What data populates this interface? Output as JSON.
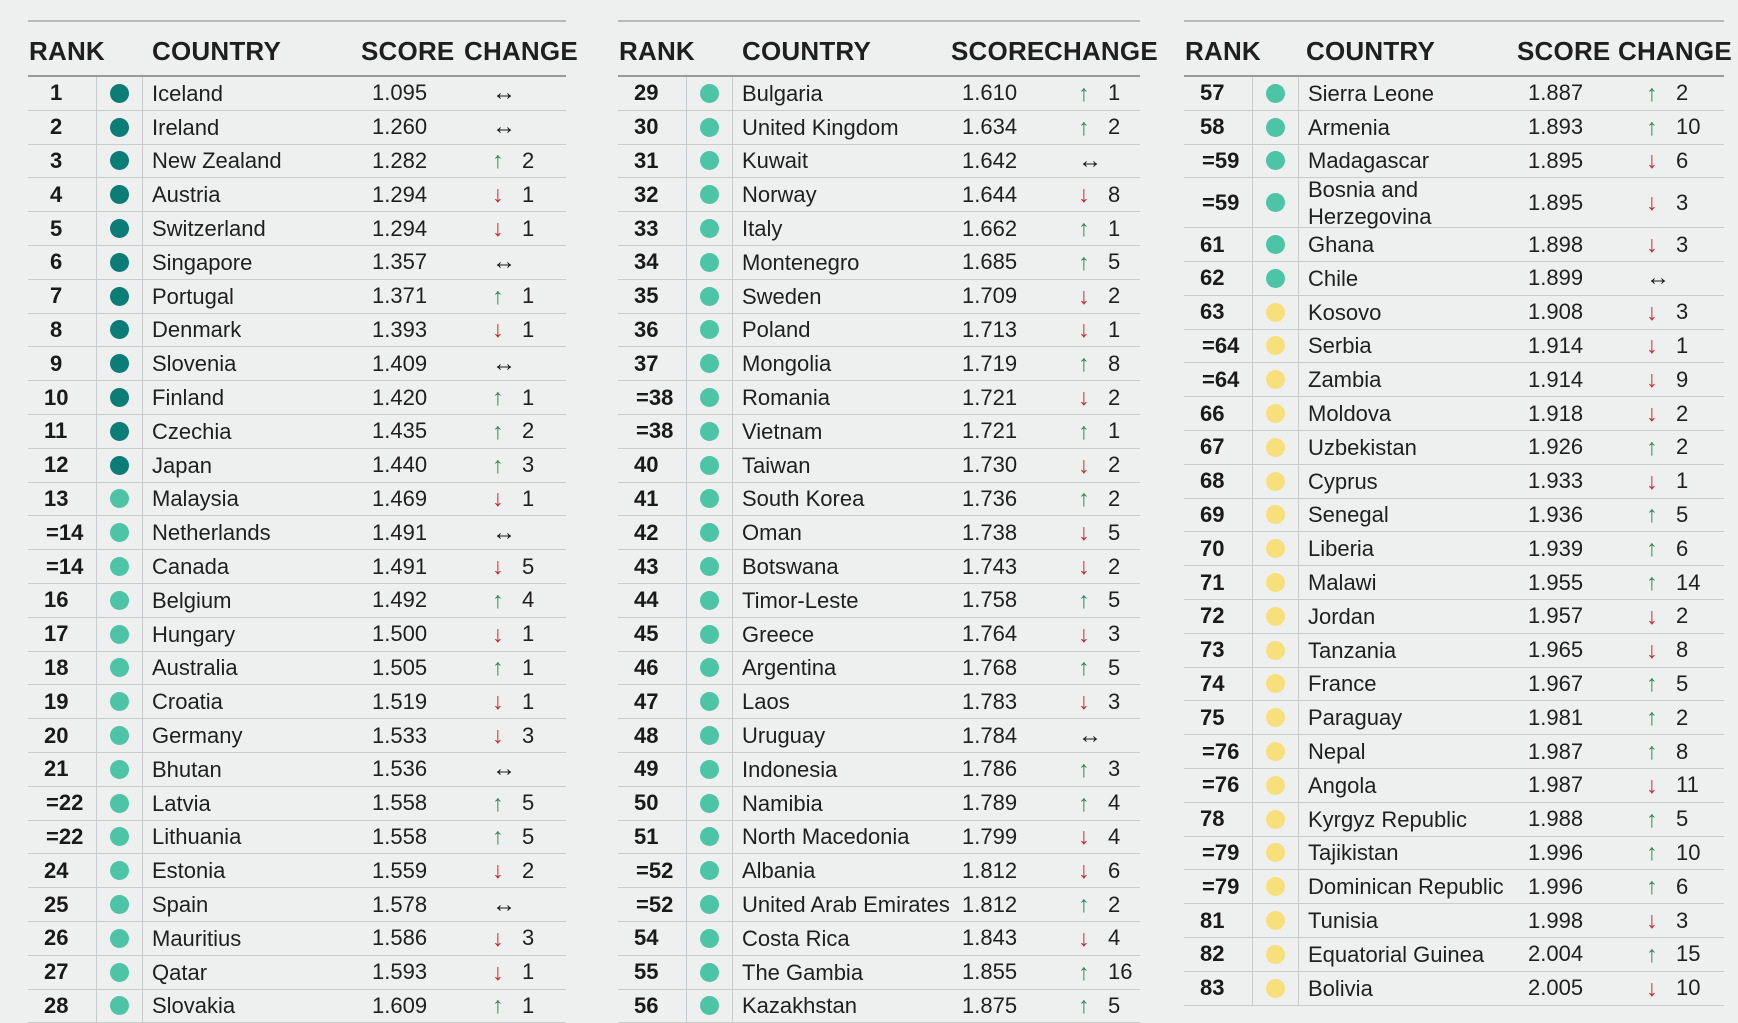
{
  "headers": {
    "rank": "RANK",
    "country": "COUNTRY",
    "score": "SCORE",
    "change": "CHANGE"
  },
  "colors": {
    "high": "#0c7c76",
    "mid": "#4ec4a6",
    "low": "#f7df7c",
    "up": "#2e8b57",
    "down": "#cc2a2a"
  },
  "columns": [
    {
      "rows": [
        {
          "rank": "1",
          "country": "Iceland",
          "score": "1.095",
          "dir": "same",
          "change": "",
          "level": "high"
        },
        {
          "rank": "2",
          "country": "Ireland",
          "score": "1.260",
          "dir": "same",
          "change": "",
          "level": "high"
        },
        {
          "rank": "3",
          "country": "New Zealand",
          "score": "1.282",
          "dir": "up",
          "change": "2",
          "level": "high"
        },
        {
          "rank": "4",
          "country": "Austria",
          "score": "1.294",
          "dir": "down",
          "change": "1",
          "level": "high"
        },
        {
          "rank": "5",
          "country": "Switzerland",
          "score": "1.294",
          "dir": "down",
          "change": "1",
          "level": "high"
        },
        {
          "rank": "6",
          "country": "Singapore",
          "score": "1.357",
          "dir": "same",
          "change": "",
          "level": "high"
        },
        {
          "rank": "7",
          "country": "Portugal",
          "score": "1.371",
          "dir": "up",
          "change": "1",
          "level": "high"
        },
        {
          "rank": "8",
          "country": "Denmark",
          "score": "1.393",
          "dir": "down",
          "change": "1",
          "level": "high"
        },
        {
          "rank": "9",
          "country": "Slovenia",
          "score": "1.409",
          "dir": "same",
          "change": "",
          "level": "high"
        },
        {
          "rank": "10",
          "country": "Finland",
          "score": "1.420",
          "dir": "up",
          "change": "1",
          "level": "high"
        },
        {
          "rank": "11",
          "country": "Czechia",
          "score": "1.435",
          "dir": "up",
          "change": "2",
          "level": "high"
        },
        {
          "rank": "12",
          "country": "Japan",
          "score": "1.440",
          "dir": "up",
          "change": "3",
          "level": "high"
        },
        {
          "rank": "13",
          "country": "Malaysia",
          "score": "1.469",
          "dir": "down",
          "change": "1",
          "level": "mid"
        },
        {
          "rank": "=14",
          "country": "Netherlands",
          "score": "1.491",
          "dir": "same",
          "change": "",
          "level": "mid"
        },
        {
          "rank": "=14",
          "country": "Canada",
          "score": "1.491",
          "dir": "down",
          "change": "5",
          "level": "mid"
        },
        {
          "rank": "16",
          "country": "Belgium",
          "score": "1.492",
          "dir": "up",
          "change": "4",
          "level": "mid"
        },
        {
          "rank": "17",
          "country": "Hungary",
          "score": "1.500",
          "dir": "down",
          "change": "1",
          "level": "mid"
        },
        {
          "rank": "18",
          "country": "Australia",
          "score": "1.505",
          "dir": "up",
          "change": "1",
          "level": "mid"
        },
        {
          "rank": "19",
          "country": "Croatia",
          "score": "1.519",
          "dir": "down",
          "change": "1",
          "level": "mid"
        },
        {
          "rank": "20",
          "country": "Germany",
          "score": "1.533",
          "dir": "down",
          "change": "3",
          "level": "mid"
        },
        {
          "rank": "21",
          "country": "Bhutan",
          "score": "1.536",
          "dir": "same",
          "change": "",
          "level": "mid"
        },
        {
          "rank": "=22",
          "country": "Latvia",
          "score": "1.558",
          "dir": "up",
          "change": "5",
          "level": "mid"
        },
        {
          "rank": "=22",
          "country": "Lithuania",
          "score": "1.558",
          "dir": "up",
          "change": "5",
          "level": "mid"
        },
        {
          "rank": "24",
          "country": "Estonia",
          "score": "1.559",
          "dir": "down",
          "change": "2",
          "level": "mid"
        },
        {
          "rank": "25",
          "country": "Spain",
          "score": "1.578",
          "dir": "same",
          "change": "",
          "level": "mid"
        },
        {
          "rank": "26",
          "country": "Mauritius",
          "score": "1.586",
          "dir": "down",
          "change": "3",
          "level": "mid"
        },
        {
          "rank": "27",
          "country": "Qatar",
          "score": "1.593",
          "dir": "down",
          "change": "1",
          "level": "mid"
        },
        {
          "rank": "28",
          "country": "Slovakia",
          "score": "1.609",
          "dir": "up",
          "change": "1",
          "level": "mid"
        }
      ]
    },
    {
      "rows": [
        {
          "rank": "29",
          "country": "Bulgaria",
          "score": "1.610",
          "dir": "up",
          "change": "1",
          "level": "mid"
        },
        {
          "rank": "30",
          "country": "United Kingdom",
          "score": "1.634",
          "dir": "up",
          "change": "2",
          "level": "mid"
        },
        {
          "rank": "31",
          "country": "Kuwait",
          "score": "1.642",
          "dir": "same",
          "change": "",
          "level": "mid"
        },
        {
          "rank": "32",
          "country": "Norway",
          "score": "1.644",
          "dir": "down",
          "change": "8",
          "level": "mid"
        },
        {
          "rank": "33",
          "country": "Italy",
          "score": "1.662",
          "dir": "up",
          "change": "1",
          "level": "mid"
        },
        {
          "rank": "34",
          "country": "Montenegro",
          "score": "1.685",
          "dir": "up",
          "change": "5",
          "level": "mid"
        },
        {
          "rank": "35",
          "country": "Sweden",
          "score": "1.709",
          "dir": "down",
          "change": "2",
          "level": "mid"
        },
        {
          "rank": "36",
          "country": "Poland",
          "score": "1.713",
          "dir": "down",
          "change": "1",
          "level": "mid"
        },
        {
          "rank": "37",
          "country": "Mongolia",
          "score": "1.719",
          "dir": "up",
          "change": "8",
          "level": "mid"
        },
        {
          "rank": "=38",
          "country": "Romania",
          "score": "1.721",
          "dir": "down",
          "change": "2",
          "level": "mid"
        },
        {
          "rank": "=38",
          "country": "Vietnam",
          "score": "1.721",
          "dir": "up",
          "change": "1",
          "level": "mid"
        },
        {
          "rank": "40",
          "country": "Taiwan",
          "score": "1.730",
          "dir": "down",
          "change": "2",
          "level": "mid"
        },
        {
          "rank": "41",
          "country": "South Korea",
          "score": "1.736",
          "dir": "up",
          "change": "2",
          "level": "mid"
        },
        {
          "rank": "42",
          "country": "Oman",
          "score": "1.738",
          "dir": "down",
          "change": "5",
          "level": "mid"
        },
        {
          "rank": "43",
          "country": "Botswana",
          "score": "1.743",
          "dir": "down",
          "change": "2",
          "level": "mid"
        },
        {
          "rank": "44",
          "country": "Timor-Leste",
          "score": "1.758",
          "dir": "up",
          "change": "5",
          "level": "mid"
        },
        {
          "rank": "45",
          "country": "Greece",
          "score": "1.764",
          "dir": "down",
          "change": "3",
          "level": "mid"
        },
        {
          "rank": "46",
          "country": "Argentina",
          "score": "1.768",
          "dir": "up",
          "change": "5",
          "level": "mid"
        },
        {
          "rank": "47",
          "country": "Laos",
          "score": "1.783",
          "dir": "down",
          "change": "3",
          "level": "mid"
        },
        {
          "rank": "48",
          "country": "Uruguay",
          "score": "1.784",
          "dir": "same",
          "change": "",
          "level": "mid"
        },
        {
          "rank": "49",
          "country": "Indonesia",
          "score": "1.786",
          "dir": "up",
          "change": "3",
          "level": "mid"
        },
        {
          "rank": "50",
          "country": "Namibia",
          "score": "1.789",
          "dir": "up",
          "change": "4",
          "level": "mid"
        },
        {
          "rank": "51",
          "country": "North Macedonia",
          "score": "1.799",
          "dir": "down",
          "change": "4",
          "level": "mid"
        },
        {
          "rank": "=52",
          "country": "Albania",
          "score": "1.812",
          "dir": "down",
          "change": "6",
          "level": "mid"
        },
        {
          "rank": "=52",
          "country": "United Arab Emirates",
          "score": "1.812",
          "dir": "up",
          "change": "2",
          "level": "mid"
        },
        {
          "rank": "54",
          "country": "Costa Rica",
          "score": "1.843",
          "dir": "down",
          "change": "4",
          "level": "mid"
        },
        {
          "rank": "55",
          "country": "The Gambia",
          "score": "1.855",
          "dir": "up",
          "change": "16",
          "level": "mid"
        },
        {
          "rank": "56",
          "country": "Kazakhstan",
          "score": "1.875",
          "dir": "up",
          "change": "5",
          "level": "mid"
        }
      ]
    },
    {
      "rows": [
        {
          "rank": "57",
          "country": "Sierra Leone",
          "score": "1.887",
          "dir": "up",
          "change": "2",
          "level": "mid"
        },
        {
          "rank": "58",
          "country": "Armenia",
          "score": "1.893",
          "dir": "up",
          "change": "10",
          "level": "mid"
        },
        {
          "rank": "=59",
          "country": "Madagascar",
          "score": "1.895",
          "dir": "down",
          "change": "6",
          "level": "mid"
        },
        {
          "rank": "=59",
          "country": "Bosnia and Herzegovina",
          "score": "1.895",
          "dir": "down",
          "change": "3",
          "level": "mid",
          "tall": true
        },
        {
          "rank": "61",
          "country": "Ghana",
          "score": "1.898",
          "dir": "down",
          "change": "3",
          "level": "mid"
        },
        {
          "rank": "62",
          "country": "Chile",
          "score": "1.899",
          "dir": "same",
          "change": "",
          "level": "mid"
        },
        {
          "rank": "63",
          "country": "Kosovo",
          "score": "1.908",
          "dir": "down",
          "change": "3",
          "level": "low"
        },
        {
          "rank": "=64",
          "country": "Serbia",
          "score": "1.914",
          "dir": "down",
          "change": "1",
          "level": "low"
        },
        {
          "rank": "=64",
          "country": "Zambia",
          "score": "1.914",
          "dir": "down",
          "change": "9",
          "level": "low"
        },
        {
          "rank": "66",
          "country": "Moldova",
          "score": "1.918",
          "dir": "down",
          "change": "2",
          "level": "low"
        },
        {
          "rank": "67",
          "country": "Uzbekistan",
          "score": "1.926",
          "dir": "up",
          "change": "2",
          "level": "low"
        },
        {
          "rank": "68",
          "country": "Cyprus",
          "score": "1.933",
          "dir": "down",
          "change": "1",
          "level": "low"
        },
        {
          "rank": "69",
          "country": "Senegal",
          "score": "1.936",
          "dir": "up",
          "change": "5",
          "level": "low"
        },
        {
          "rank": "70",
          "country": "Liberia",
          "score": "1.939",
          "dir": "up",
          "change": "6",
          "level": "low"
        },
        {
          "rank": "71",
          "country": "Malawi",
          "score": "1.955",
          "dir": "up",
          "change": "14",
          "level": "low"
        },
        {
          "rank": "72",
          "country": "Jordan",
          "score": "1.957",
          "dir": "down",
          "change": "2",
          "level": "low"
        },
        {
          "rank": "73",
          "country": "Tanzania",
          "score": "1.965",
          "dir": "down",
          "change": "8",
          "level": "low"
        },
        {
          "rank": "74",
          "country": "France",
          "score": "1.967",
          "dir": "up",
          "change": "5",
          "level": "low"
        },
        {
          "rank": "75",
          "country": "Paraguay",
          "score": "1.981",
          "dir": "up",
          "change": "2",
          "level": "low"
        },
        {
          "rank": "=76",
          "country": "Nepal",
          "score": "1.987",
          "dir": "up",
          "change": "8",
          "level": "low"
        },
        {
          "rank": "=76",
          "country": "Angola",
          "score": "1.987",
          "dir": "down",
          "change": "11",
          "level": "low"
        },
        {
          "rank": "78",
          "country": "Kyrgyz Republic",
          "score": "1.988",
          "dir": "up",
          "change": "5",
          "level": "low"
        },
        {
          "rank": "=79",
          "country": "Tajikistan",
          "score": "1.996",
          "dir": "up",
          "change": "10",
          "level": "low"
        },
        {
          "rank": "=79",
          "country": "Dominican Republic",
          "score": "1.996",
          "dir": "up",
          "change": "6",
          "level": "low"
        },
        {
          "rank": "81",
          "country": "Tunisia",
          "score": "1.998",
          "dir": "down",
          "change": "3",
          "level": "low"
        },
        {
          "rank": "82",
          "country": "Equatorial Guinea",
          "score": "2.004",
          "dir": "up",
          "change": "15",
          "level": "low"
        },
        {
          "rank": "83",
          "country": "Bolivia",
          "score": "2.005",
          "dir": "down",
          "change": "10",
          "level": "low"
        }
      ]
    }
  ]
}
